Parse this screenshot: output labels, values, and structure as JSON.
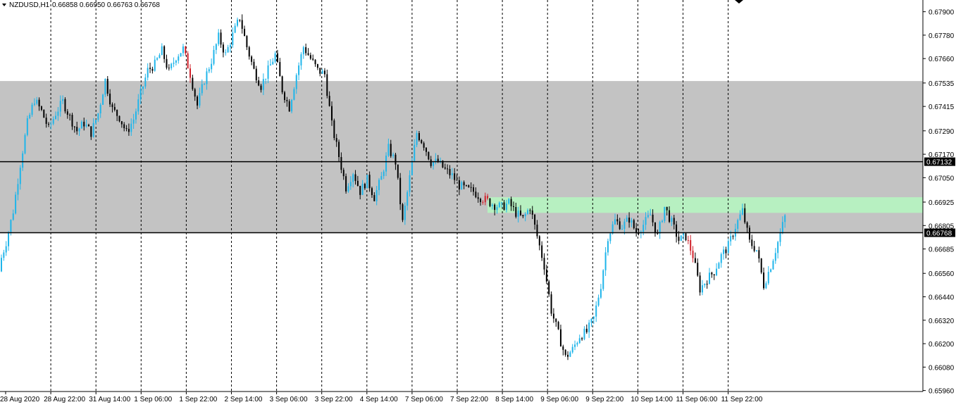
{
  "header": {
    "symbol": "NZDUSD,H1",
    "ohlc": "0.66858 0.66950 0.66763 0.66768"
  },
  "colors": {
    "bull": "#1fb5ea",
    "bear": "#000000",
    "warn": "#d0202a",
    "zone_gray": "#c3c3c3",
    "zone_green": "#b7f0c1",
    "grid": "#000000"
  },
  "chart_data": {
    "type": "candlestick",
    "title": "NZDUSD,H1",
    "xlabel": "",
    "ylabel": "",
    "ylim": [
      0.65955,
      0.6796
    ],
    "grid": "vertical-dashed",
    "y_ticks": [
      "0.67900",
      "0.67780",
      "0.67660",
      "0.67535",
      "0.67415",
      "0.67290",
      "0.67170",
      "0.67050",
      "0.66925",
      "0.66805",
      "0.66685",
      "0.66560",
      "0.66440",
      "0.66320",
      "0.66200",
      "0.66080",
      "0.65960"
    ],
    "x_ticks": [
      "28 Aug 2020",
      "28 Aug 22:00",
      "31 Aug 14:00",
      "1 Sep 06:00",
      "1 Sep 22:00",
      "2 Sep 14:00",
      "3 Sep 06:00",
      "3 Sep 22:00",
      "4 Sep 14:00",
      "7 Sep 06:00",
      "7 Sep 22:00",
      "8 Sep 14:00",
      "9 Sep 06:00",
      "9 Sep 22:00",
      "10 Sep 14:00",
      "11 Sep 06:00",
      "11 Sep 22:00"
    ],
    "zones": [
      {
        "name": "gray-zone",
        "from": 0.66768,
        "to": 0.67545
      },
      {
        "name": "green-zone",
        "from": 0.6687,
        "to": 0.6695
      }
    ],
    "levels": [
      {
        "value": 0.67132,
        "label": "0.67132"
      },
      {
        "value": 0.66768,
        "label": "0.66768"
      }
    ],
    "close_path": [
      0.666,
      0.6672,
      0.6688,
      0.6712,
      0.6733,
      0.6745,
      0.6739,
      0.673,
      0.6738,
      0.6744,
      0.6736,
      0.6729,
      0.6733,
      0.6728,
      0.6738,
      0.6755,
      0.674,
      0.6736,
      0.6728,
      0.6735,
      0.6748,
      0.676,
      0.6763,
      0.677,
      0.6759,
      0.6767,
      0.6771,
      0.6758,
      0.6742,
      0.6755,
      0.6765,
      0.6777,
      0.6768,
      0.6778,
      0.6787,
      0.6772,
      0.676,
      0.6752,
      0.676,
      0.6768,
      0.675,
      0.6741,
      0.6758,
      0.6772,
      0.6766,
      0.676,
      0.6758,
      0.6732,
      0.6716,
      0.67,
      0.6708,
      0.6698,
      0.6704,
      0.6695,
      0.6705,
      0.672,
      0.6713,
      0.6682,
      0.6705,
      0.6728,
      0.6722,
      0.6713,
      0.6713,
      0.6709,
      0.6706,
      0.6701,
      0.6699,
      0.6698,
      0.6695,
      0.6693,
      0.6691,
      0.669,
      0.6692,
      0.6687,
      0.6684,
      0.669,
      0.6675,
      0.666,
      0.6637,
      0.6625,
      0.6613,
      0.6617,
      0.6624,
      0.6626,
      0.6633,
      0.665,
      0.6675,
      0.6683,
      0.668,
      0.6684,
      0.6677,
      0.6681,
      0.6686,
      0.6675,
      0.669,
      0.6682,
      0.6673,
      0.6675,
      0.6665,
      0.6648,
      0.6653,
      0.6657,
      0.6665,
      0.667,
      0.668,
      0.6688,
      0.6672,
      0.6668,
      0.665,
      0.666,
      0.6672,
      0.6685
    ],
    "red_candles": [
      26,
      68,
      97
    ]
  }
}
